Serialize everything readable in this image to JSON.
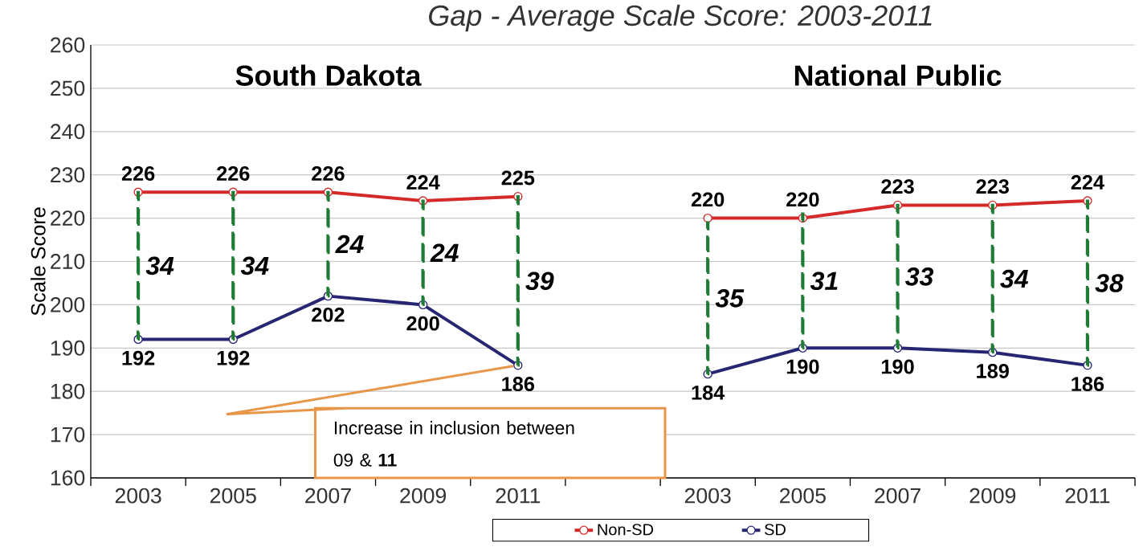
{
  "chart_data": {
    "type": "line",
    "title": "Gap - Average Scale Score: 2003-2011",
    "ylabel": "Scale Score",
    "categories": [
      "2003",
      "2005",
      "2007",
      "2009",
      "2011",
      null,
      "2003",
      "2005",
      "2007",
      "2009",
      "2011"
    ],
    "series": [
      {
        "name": "Non-SD",
        "color": "#d42a2a",
        "values": [
          226,
          226,
          226,
          224,
          225,
          null,
          220,
          220,
          223,
          223,
          224
        ]
      },
      {
        "name": "SD",
        "color": "#262673",
        "values": [
          192,
          192,
          202,
          200,
          186,
          null,
          184,
          190,
          190,
          189,
          186
        ]
      },
      {
        "type": "bar",
        "color": "#1f7a35",
        "line_style": "dashed",
        "base": [
          192,
          192,
          202,
          200,
          186,
          null,
          184,
          190,
          190,
          189,
          186
        ],
        "values": [
          34,
          34,
          24,
          24,
          39,
          null,
          35,
          31,
          33,
          34,
          38
        ]
      }
    ],
    "ylim": [
      160,
      260
    ],
    "yticks": [
      160,
      170,
      180,
      190,
      200,
      210,
      220,
      230,
      240,
      250,
      260
    ],
    "grid": "y",
    "marker": "circle",
    "legend": "bottom",
    "data_labels": true,
    "annotations": [
      "South Dakota",
      "National Public",
      {
        "text": "Increase in inclusion between 09 & **11**",
        "x": "2011",
        "y": 186
      }
    ]
  }
}
